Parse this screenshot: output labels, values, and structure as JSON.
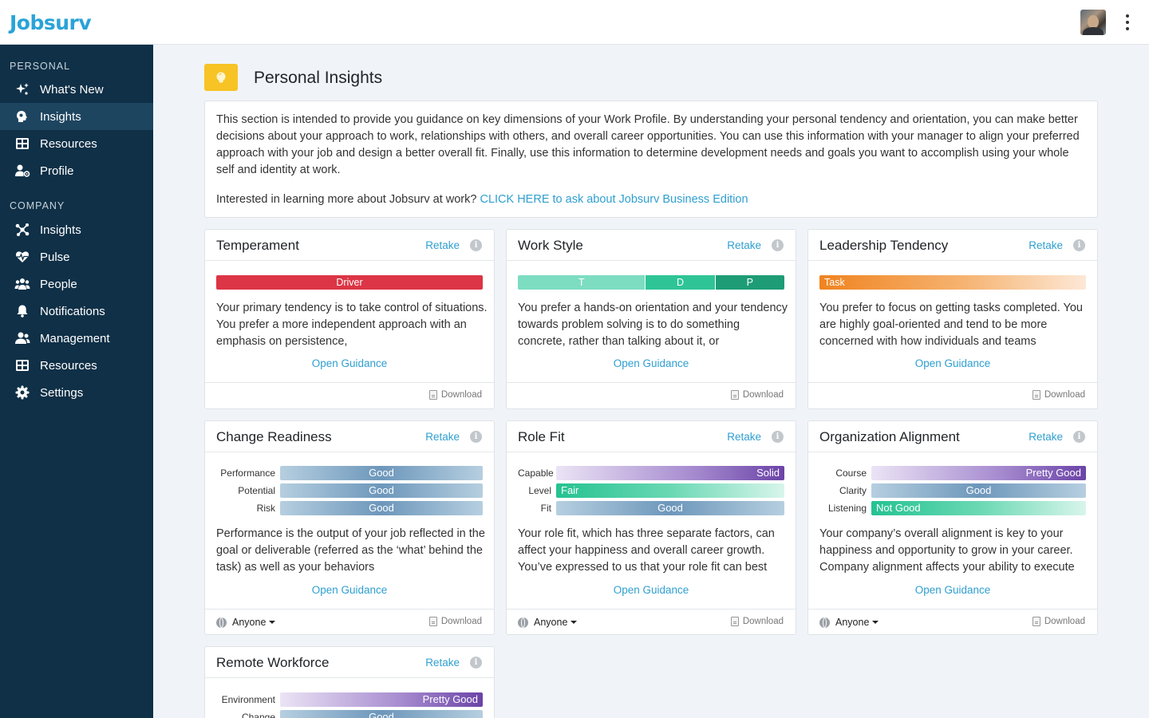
{
  "app": {
    "logo": "Jobsurv"
  },
  "sidebar": {
    "personal_label": "PERSONAL",
    "company_label": "COMPANY",
    "personal_items": [
      {
        "label": "What's New",
        "icon": "sparkle-icon"
      },
      {
        "label": "Insights",
        "icon": "brain-icon",
        "active": true
      },
      {
        "label": "Resources",
        "icon": "resources-icon"
      },
      {
        "label": "Profile",
        "icon": "user-gear-icon"
      }
    ],
    "company_items": [
      {
        "label": "Insights",
        "icon": "network-icon"
      },
      {
        "label": "Pulse",
        "icon": "heart-pulse-icon"
      },
      {
        "label": "People",
        "icon": "people-icon"
      },
      {
        "label": "Notifications",
        "icon": "bell-icon"
      },
      {
        "label": "Management",
        "icon": "users-manage-icon"
      },
      {
        "label": "Resources",
        "icon": "resources-icon"
      },
      {
        "label": "Settings",
        "icon": "gear-icon"
      }
    ]
  },
  "page": {
    "title": "Personal Insights",
    "icon": "lightbulb-icon",
    "intro": "This section is intended to provide you guidance on key dimensions of your Work Profile. By understanding your personal tendency and orientation, you can make better decisions about your approach to work, relationships with others, and overall career opportunities. You can use this information with your manager to align your preferred approach with your job and design a better overall fit. Finally, use this information to determine development needs and goals you want to accomplish using your whole self and identity at work.",
    "cta_text": "Interested in learning more about Jobsurv at work? ",
    "cta_link": "CLICK HERE  to ask about Jobsurv Business Edition"
  },
  "common": {
    "retake": "Retake",
    "info": "i",
    "open_guidance": "Open Guidance",
    "download": "Download",
    "visibility": "Anyone"
  },
  "cards": {
    "temperament": {
      "title": "Temperament",
      "bar_label": "Driver",
      "bar_color": "#dc3545",
      "text": "Your primary tendency is to take control of situations. You prefer a more independent approach with an emphasis on persistence,"
    },
    "work_style": {
      "title": "Work Style",
      "segments": [
        {
          "label": "T",
          "color": "#7dddc1",
          "share": 0.48
        },
        {
          "label": "D",
          "color": "#2fc496",
          "share": 0.26
        },
        {
          "label": "P",
          "color": "#1e9c76",
          "share": 0.26
        }
      ],
      "text": "You prefer a hands-on orientation and your tendency towards problem solving is to do something concrete, rather than talking about it, or"
    },
    "leadership": {
      "title": "Leadership Tendency",
      "bar_label": "Task",
      "text": "You prefer to focus on getting tasks completed. You are highly goal-oriented and tend to be more concerned with how individuals and teams"
    },
    "change_readiness": {
      "title": "Change Readiness",
      "rows": [
        {
          "label": "Performance",
          "value": "Good"
        },
        {
          "label": "Potential",
          "value": "Good"
        },
        {
          "label": "Risk",
          "value": "Good"
        }
      ],
      "text": "Performance is the output of your job reflected in the goal or deliverable (referred as the ‘what’ behind the task) as well as your behaviors"
    },
    "role_fit": {
      "title": "Role Fit",
      "rows": [
        {
          "label": "Capable",
          "value": "Solid"
        },
        {
          "label": "Level",
          "value": "Fair"
        },
        {
          "label": "Fit",
          "value": "Good"
        }
      ],
      "text": "Your role fit, which has three separate factors, can affect your happiness and overall career growth. You’ve expressed to us that your role fit can best"
    },
    "org_alignment": {
      "title": "Organization Alignment",
      "rows": [
        {
          "label": "Course",
          "value": "Pretty Good"
        },
        {
          "label": "Clarity",
          "value": "Good"
        },
        {
          "label": "Listening",
          "value": "Not Good"
        }
      ],
      "text": "Your company’s overall alignment is key to your happiness and opportunity to grow in your career. Company alignment affects your ability to execute"
    },
    "remote": {
      "title": "Remote Workforce",
      "rows": [
        {
          "label": "Environment",
          "value": "Pretty Good"
        },
        {
          "label": "Change",
          "value": "Good"
        }
      ]
    }
  }
}
